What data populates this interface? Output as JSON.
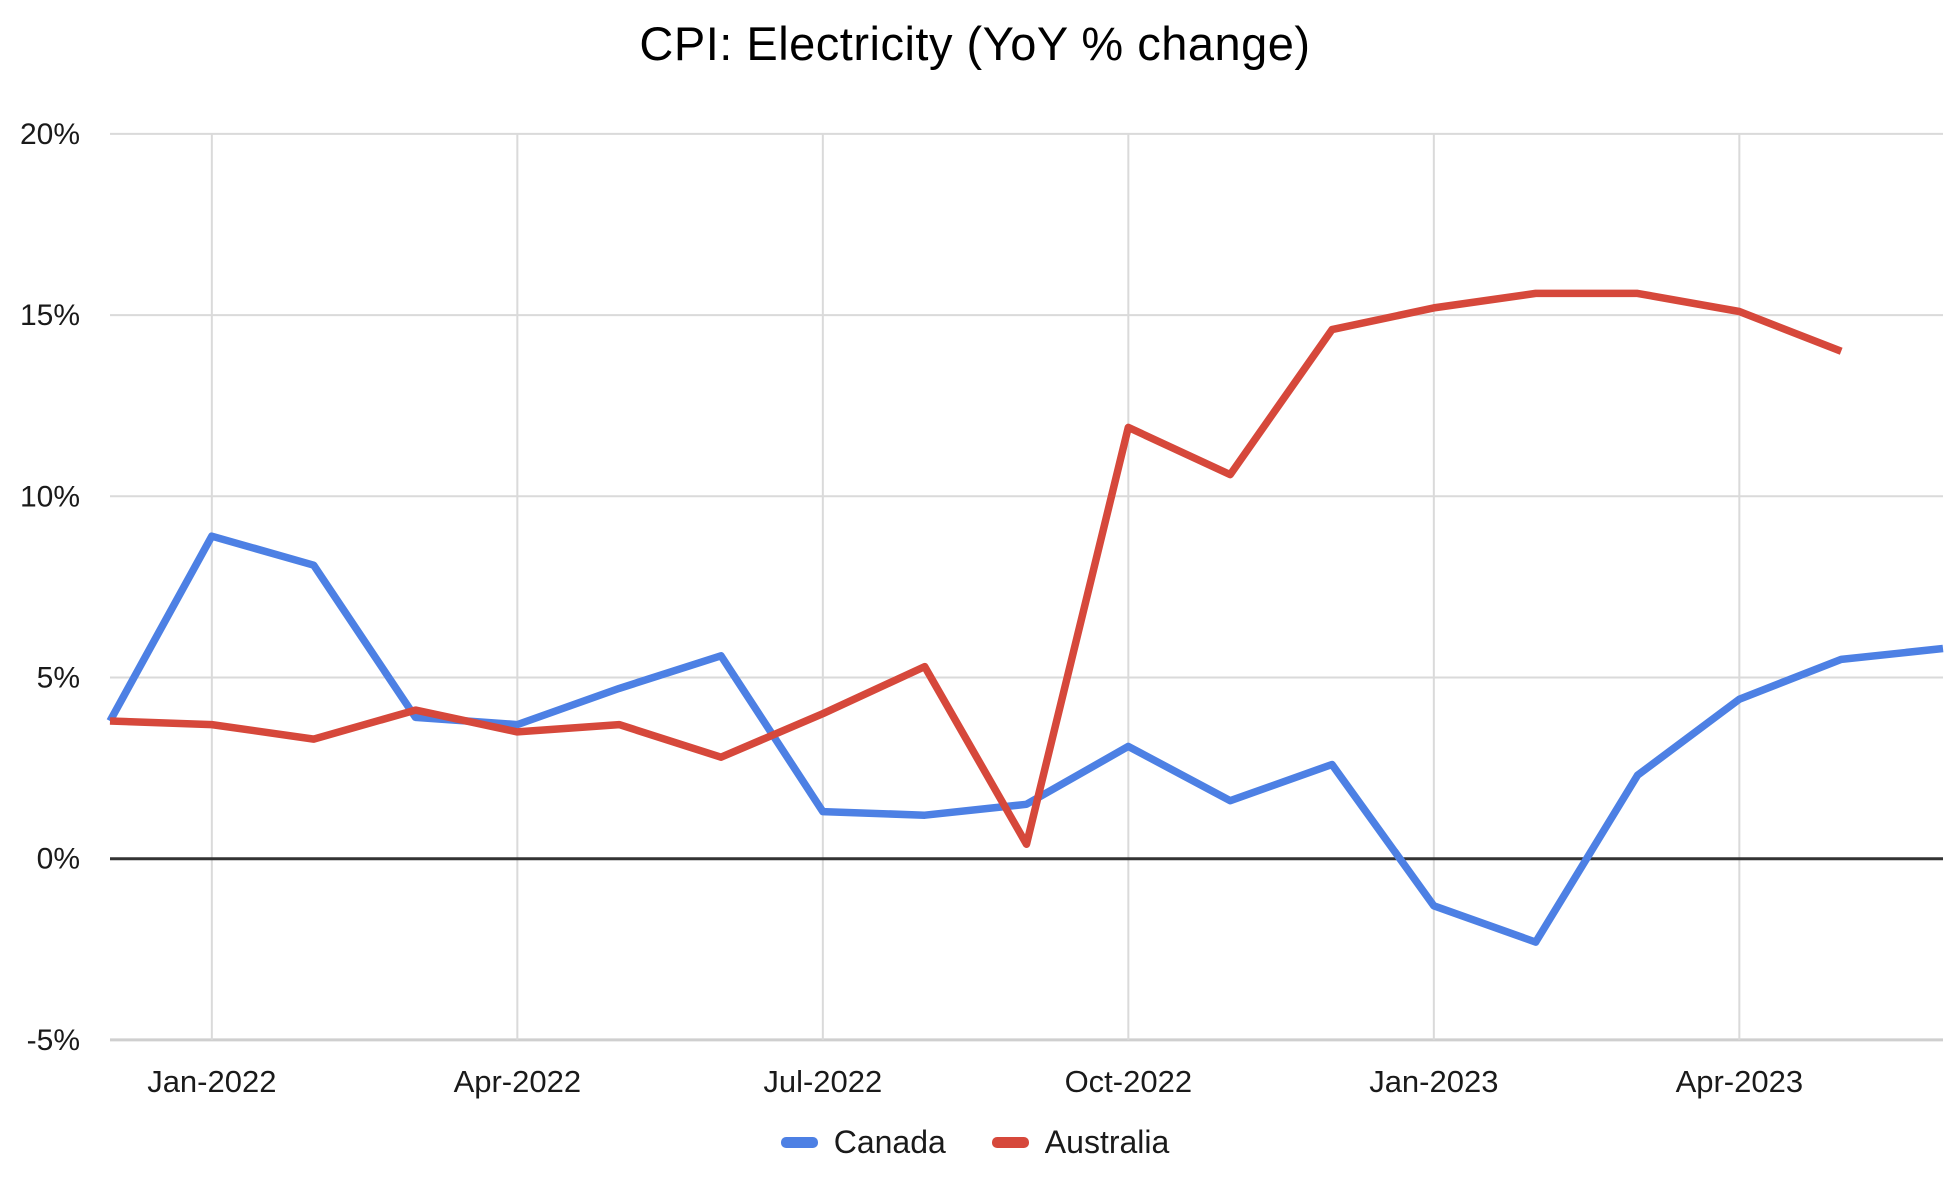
{
  "page": {
    "background": "#ffffff"
  },
  "chart_data": {
    "type": "line",
    "title": "CPI: Electricity (YoY % change)",
    "x": [
      "Dec-2021",
      "Jan-2022",
      "Feb-2022",
      "Mar-2022",
      "Apr-2022",
      "May-2022",
      "Jun-2022",
      "Jul-2022",
      "Aug-2022",
      "Sep-2022",
      "Oct-2022",
      "Nov-2022",
      "Dec-2022",
      "Jan-2023",
      "Feb-2023",
      "Mar-2023",
      "Apr-2023",
      "May-2023",
      "Jun-2023"
    ],
    "x_tick_labels": [
      "Jan-2022",
      "Apr-2022",
      "Jul-2022",
      "Oct-2022",
      "Jan-2023",
      "Apr-2023"
    ],
    "y_ticks": [
      {
        "value": -5,
        "label": "-5%"
      },
      {
        "value": 0,
        "label": "0%"
      },
      {
        "value": 5,
        "label": "5%"
      },
      {
        "value": 10,
        "label": "10%"
      },
      {
        "value": 15,
        "label": "15%"
      },
      {
        "value": 20,
        "label": "20%"
      }
    ],
    "ylim": [
      -5,
      20
    ],
    "grid": {
      "gridline_color": "#dadada",
      "zero_line_color": "#333333",
      "baseline_color": "#cfcfcf",
      "legend_position": "bottom",
      "grid_on": true
    },
    "series": [
      {
        "name": "Canada",
        "color": "#4d80e4",
        "values": [
          3.8,
          8.9,
          8.1,
          3.9,
          3.7,
          4.7,
          5.6,
          1.3,
          1.2,
          1.5,
          3.1,
          1.6,
          2.6,
          -1.3,
          -2.3,
          2.3,
          4.4,
          5.5,
          5.8
        ]
      },
      {
        "name": "Australia",
        "color": "#d6483b",
        "values": [
          3.8,
          3.7,
          3.3,
          4.1,
          3.5,
          3.7,
          2.8,
          4.0,
          5.3,
          0.4,
          11.9,
          10.6,
          14.6,
          15.2,
          15.6,
          15.6,
          15.1,
          14.0
        ]
      }
    ]
  }
}
